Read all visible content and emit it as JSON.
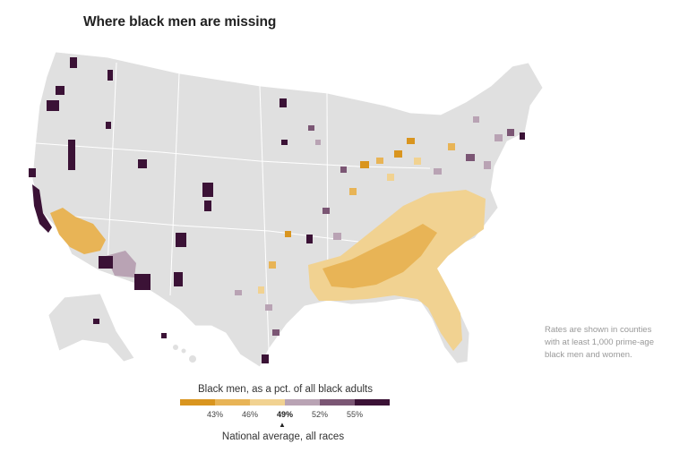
{
  "title": "Where black men are missing",
  "note": "Rates are shown in counties with at least 1,000 prime-age black men and women.",
  "legend": {
    "title": "Black men, as a pct. of all black adults",
    "ticks": [
      "43%",
      "46%",
      "49%",
      "52%",
      "55%"
    ],
    "highlight_tick": "49%",
    "national_label": "National average, all races",
    "colors": [
      "#d9951f",
      "#e8b456",
      "#f1d291",
      "#b9a3b4",
      "#7b5674",
      "#3b1236"
    ]
  },
  "map_style": {
    "land": "#e0e0e0",
    "borders": "#ffffff",
    "ramp_low": "#d9951f",
    "ramp_mid": "#f1d291",
    "ramp_high": "#3b1236"
  }
}
